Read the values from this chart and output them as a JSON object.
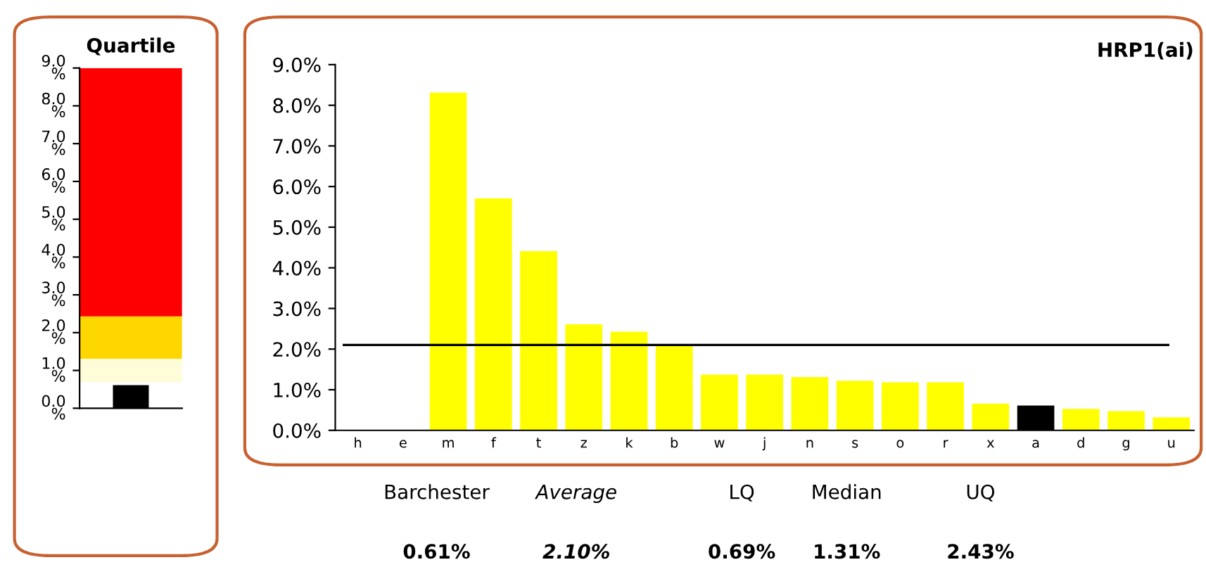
{
  "chart_data": [
    {
      "type": "bar",
      "title": "Quartile",
      "categories": [
        null
      ],
      "values": [
        0.61
      ],
      "colors": [
        "#000000"
      ],
      "bands": [
        {
          "axis": "y",
          "from": 0.69,
          "to": 1.31,
          "color": "#fffcd9"
        },
        {
          "axis": "y",
          "from": 1.31,
          "to": 2.43,
          "color": "#ffd700"
        },
        {
          "axis": "y",
          "from": 2.43,
          "to": 9.0,
          "color": "#ff0000"
        }
      ],
      "ylim": [
        0,
        9
      ],
      "yticks": [
        {
          "value": 0,
          "label": "0.0\n%"
        },
        {
          "value": 1,
          "label": "1.0\n%"
        },
        {
          "value": 2,
          "label": "2.0\n%"
        },
        {
          "value": 3,
          "label": "3.0\n%"
        },
        {
          "value": 4,
          "label": "4.0\n%"
        },
        {
          "value": 5,
          "label": "5.0\n%"
        },
        {
          "value": 6,
          "label": "6.0\n%"
        },
        {
          "value": 7,
          "label": "7.0\n%"
        },
        {
          "value": 8,
          "label": "8.0\n%"
        },
        {
          "value": 9,
          "label": "9.0\n%"
        }
      ],
      "tick_labels": "y",
      "grid": false,
      "legend": false
    },
    {
      "type": "bar",
      "title": "HRP1(ai)",
      "categories": [
        "h",
        "e",
        "m",
        "f",
        "t",
        "z",
        "k",
        "b",
        "w",
        "j",
        "n",
        "s",
        "o",
        "r",
        "x",
        "a",
        "d",
        "g",
        "u"
      ],
      "values": [
        0,
        0,
        8.31,
        5.71,
        4.41,
        2.61,
        2.43,
        2.1,
        1.37,
        1.37,
        1.31,
        1.22,
        1.18,
        1.18,
        0.66,
        0.61,
        0.53,
        0.47,
        0.32
      ],
      "colors": [
        "#ffff00",
        "#ffff00",
        "#ffff00",
        "#ffff00",
        "#ffff00",
        "#ffff00",
        "#ffff00",
        "#ffff00",
        "#ffff00",
        "#ffff00",
        "#ffff00",
        "#ffff00",
        "#ffff00",
        "#ffff00",
        "#ffff00",
        "#000000",
        "#ffff00",
        "#ffff00",
        "#ffff00"
      ],
      "ref_lines": [
        {
          "axis": "y",
          "value": 2.1,
          "label": null,
          "color": "#000000"
        }
      ],
      "ylim": [
        0,
        9
      ],
      "yticks": [
        {
          "value": 0,
          "label": "0.0%"
        },
        {
          "value": 1,
          "label": "1.0%"
        },
        {
          "value": 2,
          "label": "2.0%"
        },
        {
          "value": 3,
          "label": "3.0%"
        },
        {
          "value": 4,
          "label": "4.0%"
        },
        {
          "value": 5,
          "label": "5.0%"
        },
        {
          "value": 6,
          "label": "6.0%"
        },
        {
          "value": 7,
          "label": "7.0%"
        },
        {
          "value": 8,
          "label": "8.0%"
        },
        {
          "value": 9,
          "label": "9.0%"
        }
      ],
      "annotations": [
        "Barchester",
        "Average",
        "LQ",
        "Median",
        "UQ",
        "0.61%",
        "2.10%",
        "0.69%",
        "1.31%",
        "2.43%"
      ],
      "grid": false,
      "legend": false
    }
  ]
}
